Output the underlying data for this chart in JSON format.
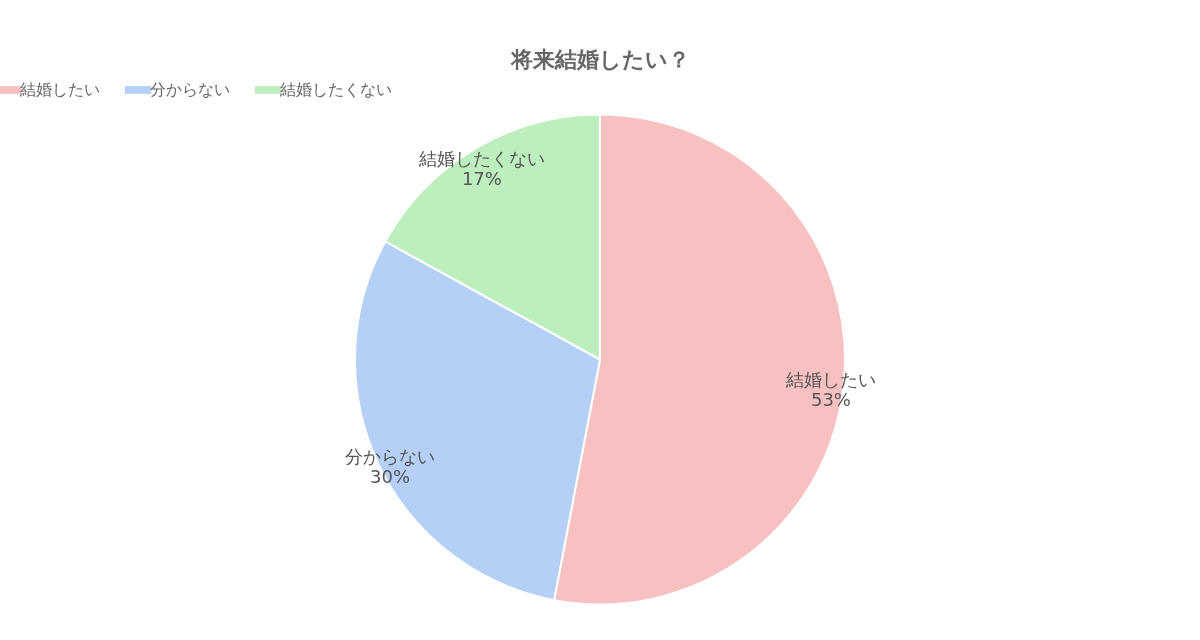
{
  "chart_data": {
    "type": "pie",
    "title": "将来結婚したい？",
    "categories": [
      "結婚したい",
      "分からない",
      "結婚したくない"
    ],
    "values": [
      53,
      30,
      17
    ],
    "colors": [
      "#f7c1c1",
      "#b5d0f7",
      "#bdeebd"
    ],
    "value_labels": [
      "53%",
      "30%",
      "17%"
    ],
    "legend": "top"
  }
}
